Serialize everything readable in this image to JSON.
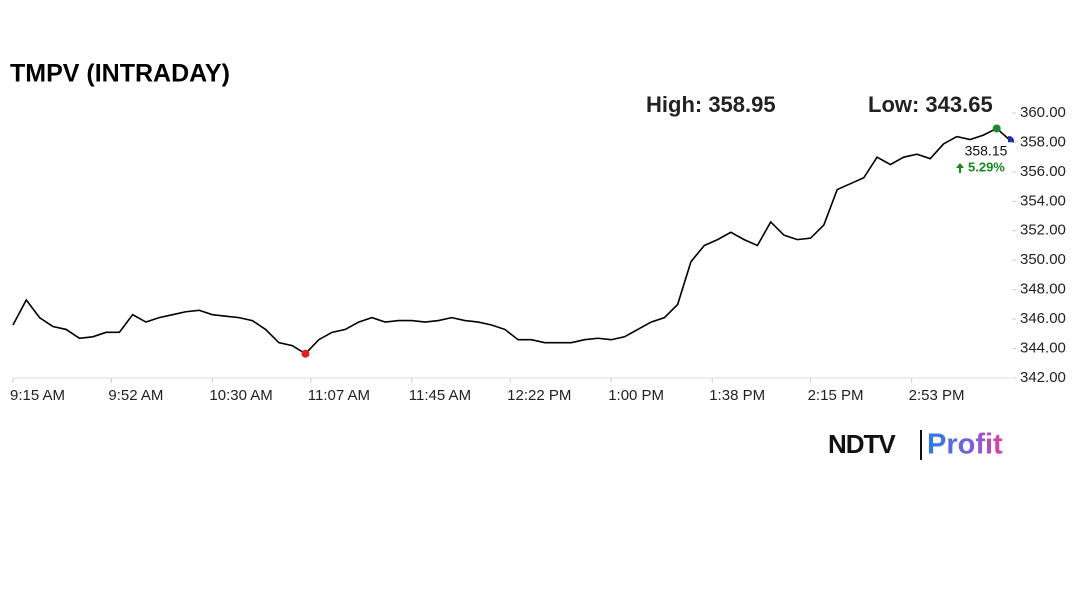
{
  "chart_data": {
    "type": "line",
    "title": "TMPV (INTRADAY)",
    "high_label": "High: 358.95",
    "low_label": "Low: 343.65",
    "high": 358.95,
    "low": 343.65,
    "last": 358.15,
    "change": 5.29,
    "change_label": "5.29%",
    "x": [
      "9:15 AM",
      "9:20 AM",
      "9:25 AM",
      "9:30 AM",
      "9:35 AM",
      "9:40 AM",
      "9:45 AM",
      "9:50 AM",
      "9:55 AM",
      "10:00 AM",
      "10:05 AM",
      "10:10 AM",
      "10:15 AM",
      "10:20 AM",
      "10:25 AM",
      "10:30 AM",
      "10:35 AM",
      "10:40 AM",
      "10:45 AM",
      "10:50 AM",
      "10:55 AM",
      "11:00 AM",
      "11:05 AM",
      "11:10 AM",
      "11:15 AM",
      "11:20 AM",
      "11:25 AM",
      "11:30 AM",
      "11:35 AM",
      "11:40 AM",
      "11:45 AM",
      "11:50 AM",
      "11:55 AM",
      "12:00 PM",
      "12:05 PM",
      "12:10 PM",
      "12:15 PM",
      "12:20 PM",
      "12:25 PM",
      "12:30 PM",
      "12:35 PM",
      "12:40 PM",
      "12:45 PM",
      "12:50 PM",
      "12:55 PM",
      "1:00 PM",
      "1:05 PM",
      "1:10 PM",
      "1:15 PM",
      "1:20 PM",
      "1:25 PM",
      "1:30 PM",
      "1:35 PM",
      "1:40 PM",
      "1:45 PM",
      "1:50 PM",
      "1:55 PM",
      "2:00 PM",
      "2:05 PM",
      "2:10 PM",
      "2:15 PM",
      "2:20 PM",
      "2:25 PM",
      "2:30 PM",
      "2:35 PM",
      "2:40 PM",
      "2:45 PM",
      "2:50 PM",
      "2:55 PM",
      "3:00 PM",
      "3:05 PM",
      "3:10 PM",
      "3:15 PM",
      "3:20 PM",
      "3:25 PM",
      "3:30 PM"
    ],
    "series": [
      {
        "name": "TMPV",
        "color": "#000000",
        "values": [
          345.6,
          347.3,
          346.1,
          345.5,
          345.3,
          344.7,
          344.8,
          345.1,
          345.1,
          346.3,
          345.8,
          346.1,
          346.3,
          346.5,
          346.6,
          346.3,
          346.2,
          346.1,
          345.9,
          345.3,
          344.4,
          344.2,
          343.65,
          344.6,
          345.1,
          345.3,
          345.8,
          346.1,
          345.8,
          345.9,
          345.9,
          345.8,
          345.9,
          346.1,
          345.9,
          345.8,
          345.6,
          345.3,
          344.6,
          344.6,
          344.4,
          344.4,
          344.4,
          344.6,
          344.7,
          344.6,
          344.8,
          345.3,
          345.8,
          346.1,
          347.0,
          349.9,
          351.0,
          351.4,
          351.9,
          351.4,
          351.0,
          352.6,
          351.7,
          351.4,
          351.5,
          352.4,
          354.8,
          355.2,
          355.6,
          357.0,
          356.5,
          357.0,
          357.2,
          356.9,
          357.9,
          358.4,
          358.2,
          358.5,
          358.95,
          358.15
        ]
      }
    ],
    "xlim": [
      "9:15 AM",
      "3:30 PM"
    ],
    "xticks": [
      "9:15 AM",
      "9:52 AM",
      "10:30 AM",
      "11:07 AM",
      "11:45 AM",
      "12:22 PM",
      "1:00 PM",
      "1:38 PM",
      "2:15 PM",
      "2:53 PM"
    ],
    "ylim": [
      342,
      360
    ],
    "yticks": [
      {
        "value": 342,
        "label": "342.00"
      },
      {
        "value": 344,
        "label": "344.00"
      },
      {
        "value": 346,
        "label": "346.00"
      },
      {
        "value": 348,
        "label": "348.00"
      },
      {
        "value": 350,
        "label": "350.00"
      },
      {
        "value": 352,
        "label": "352.00"
      },
      {
        "value": 354,
        "label": "354.00"
      },
      {
        "value": 356,
        "label": "356.00"
      },
      {
        "value": 358,
        "label": "358.00"
      },
      {
        "value": 360,
        "label": "360.00"
      }
    ],
    "high_color": "#1a8a2a",
    "low_color": "#e02020",
    "last_color": "#1f2fa0",
    "change_color": "#138a1b"
  },
  "logo": {
    "brand": "NDTV",
    "product": "Profit"
  }
}
